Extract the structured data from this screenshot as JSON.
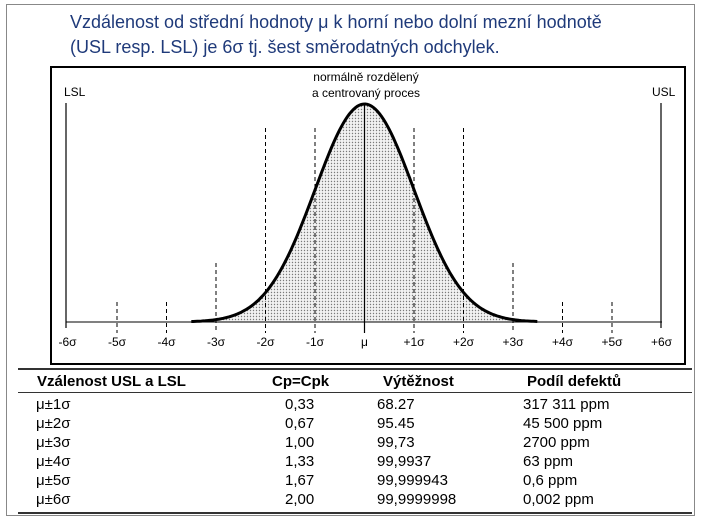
{
  "title_lines": [
    "Vzdálenost od střední hodnoty μ k horní nebo dolní mezní hodnotě",
    "(USL resp. LSL) je 6σ tj. šest směrodatných odchylek."
  ],
  "diagram": {
    "annotation_lines": [
      "normálně rozdělený",
      "a centrovaný proces"
    ],
    "lsl_label": "LSL",
    "usl_label": "USL",
    "sigma_ticks": [
      "-6σ",
      "-5σ",
      "-4σ",
      "-3σ",
      "-2σ",
      "-1σ",
      "μ",
      "+1σ",
      "+2σ",
      "+3σ",
      "+4σ",
      "+5σ",
      "+6σ"
    ],
    "fill_color": "#d9d9d9",
    "curve_color": "#000000"
  },
  "table": {
    "headers": [
      "Vzálenost USL a LSL",
      "Cp=Cpk",
      "Výtěžnost",
      "Podíl defektů"
    ],
    "rows": [
      [
        "μ±1σ",
        "0,33",
        "68.27",
        "317 311 ppm"
      ],
      [
        "μ±2σ",
        "0,67",
        "95.45",
        "45 500 ppm"
      ],
      [
        "μ±3σ",
        "1,00",
        "99,73",
        "2700 ppm"
      ],
      [
        "μ±4σ",
        "1,33",
        "99,9937",
        "63 ppm"
      ],
      [
        "μ±5σ",
        "1,67",
        "99,999943",
        "0,6 ppm"
      ],
      [
        "μ±6σ",
        "2,00",
        "99,9999998",
        "0,002 ppm"
      ]
    ]
  }
}
